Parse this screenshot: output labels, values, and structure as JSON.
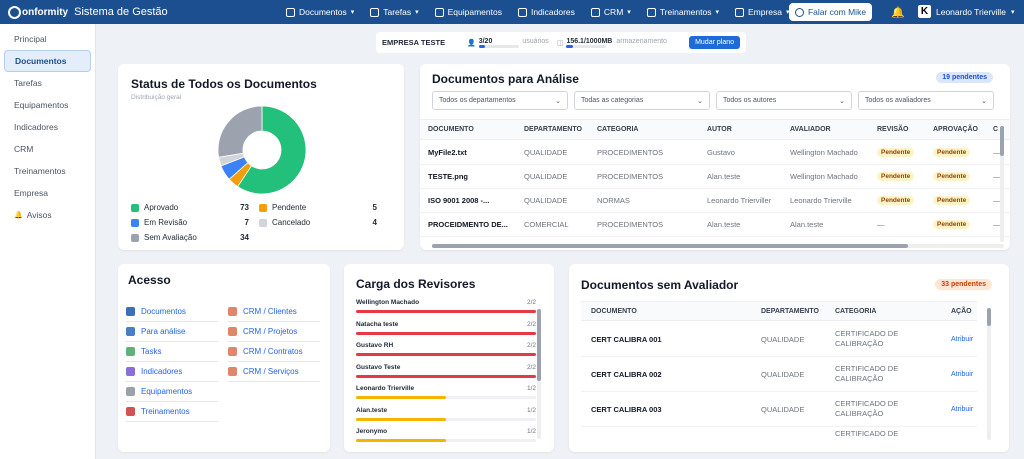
{
  "topbar": {
    "logo_text": "onformity",
    "app_title": "Sistema de Gestão",
    "nav": [
      {
        "label": "Documentos",
        "icon": "document-icon",
        "has_menu": true
      },
      {
        "label": "Tarefas",
        "icon": "tasks-icon",
        "has_menu": true
      },
      {
        "label": "Equipamentos",
        "icon": "wrench-icon",
        "has_menu": false
      },
      {
        "label": "Indicadores",
        "icon": "chart-icon",
        "has_menu": false
      },
      {
        "label": "CRM",
        "icon": "crm-icon",
        "has_menu": true
      },
      {
        "label": "Treinamentos",
        "icon": "people-icon",
        "has_menu": true
      },
      {
        "label": "Empresa",
        "icon": "building-icon",
        "has_menu": true
      }
    ],
    "talk_button": "Falar com Mike",
    "user_initial": "K",
    "user_name": "Leonardo Trierville"
  },
  "sidebar": {
    "items": [
      {
        "label": "Principal",
        "active": false
      },
      {
        "label": "Documentos",
        "active": true
      },
      {
        "label": "Tarefas",
        "active": false
      },
      {
        "label": "Equipamentos",
        "active": false
      },
      {
        "label": "Indicadores",
        "active": false
      },
      {
        "label": "CRM",
        "active": false
      },
      {
        "label": "Treinamentos",
        "active": false
      },
      {
        "label": "Empresa",
        "active": false
      },
      {
        "label": "Avisos",
        "active": false,
        "icon": "bell-icon"
      }
    ]
  },
  "plan": {
    "company": "EMPRESA TESTE",
    "users_value": "3/20",
    "users_label": "usuários",
    "users_fraction": 0.15,
    "storage_value": "156.1/1000MB",
    "storage_label": "armazenamento",
    "storage_fraction": 0.156,
    "change_button": "Mudar plano"
  },
  "status_card": {
    "title": "Status de Todos os Documentos",
    "subtitle": "Distribuição geral",
    "chart_data": {
      "type": "pie",
      "donut": true,
      "categories": [
        "Aprovado",
        "Pendente",
        "Em Revisão",
        "Cancelado",
        "Sem Avaliação"
      ],
      "values": [
        73,
        5,
        7,
        4,
        34
      ],
      "colors": [
        "#22c07a",
        "#f59e0b",
        "#3b82f6",
        "#d1d5db",
        "#9ca3af"
      ]
    },
    "legend": [
      [
        {
          "label": "Aprovado",
          "value": "73",
          "color": "#22c07a"
        },
        {
          "label": "Pendente",
          "value": "5",
          "color": "#f59e0b"
        }
      ],
      [
        {
          "label": "Em Revisão",
          "value": "7",
          "color": "#3b82f6"
        },
        {
          "label": "Cancelado",
          "value": "4",
          "color": "#d1d5db"
        }
      ],
      [
        {
          "label": "Sem Avaliação",
          "value": "34",
          "color": "#9ca3af"
        }
      ]
    ]
  },
  "analysis": {
    "title": "Documentos para Análise",
    "badge": "19 pendentes",
    "filters": [
      "Todos os departamentos",
      "Todas as categorias",
      "Todos os autores",
      "Todos os avaliadores"
    ],
    "columns": [
      "DOCUMENTO",
      "DEPARTAMENTO",
      "CATEGORIA",
      "AUTOR",
      "AVALIADOR",
      "REVISÃO",
      "APROVAÇÃO",
      "C"
    ],
    "rows": [
      [
        "MyFile2.txt",
        "QUALIDADE",
        "PROCEDIMENTOS",
        "Gustavo",
        "Wellington Machado",
        "Pendente",
        "Pendente",
        "—"
      ],
      [
        "TESTE.png",
        "QUALIDADE",
        "PROCEDIMENTOS",
        "Alan.teste",
        "Wellington Machado",
        "Pendente",
        "Pendente",
        "—"
      ],
      [
        "ISO 9001 2008 -...",
        "QUALIDADE",
        "NORMAS",
        "Leonardo Trierviller",
        "Leonardo Trierville",
        "Pendente",
        "Pendente",
        "—"
      ],
      [
        "PROCEIDMENTO DE...",
        "COMERCIAL",
        "PROCEDIMENTOS",
        "Alan.teste",
        "Alan.teste",
        "—",
        "Pendente",
        "—"
      ]
    ]
  },
  "access": {
    "title": "Acesso",
    "left": [
      {
        "label": "Documentos",
        "color": "#3b6fb6"
      },
      {
        "label": "Para análise",
        "color": "#4a7fc1"
      },
      {
        "label": "Tasks",
        "color": "#5fb37a"
      },
      {
        "label": "Indicadores",
        "color": "#8b6fd6"
      },
      {
        "label": "Equipamentos",
        "color": "#9aa1ab"
      },
      {
        "label": "Treinamentos",
        "color": "#d05454"
      }
    ],
    "right": [
      {
        "label": "CRM / Clientes",
        "color": "#e0876a"
      },
      {
        "label": "CRM / Projetos",
        "color": "#e0876a"
      },
      {
        "label": "CRM / Contratos",
        "color": "#e0876a"
      },
      {
        "label": "CRM / Serviços",
        "color": "#e0876a"
      }
    ]
  },
  "reviewers": {
    "title": "Carga dos Revisores",
    "rows": [
      {
        "name": "Wellington Machado",
        "count": "2/2",
        "fraction": 1.0,
        "color": "#e53946"
      },
      {
        "name": "Natacha teste",
        "count": "2/2",
        "fraction": 1.0,
        "color": "#e53946"
      },
      {
        "name": "Gustavo RH",
        "count": "2/2",
        "fraction": 1.0,
        "color": "#e53946"
      },
      {
        "name": "Gustavo Teste",
        "count": "2/2",
        "fraction": 1.0,
        "color": "#e53946"
      },
      {
        "name": "Leonardo Trierville",
        "count": "1/2",
        "fraction": 0.5,
        "color": "#f4b400"
      },
      {
        "name": "Alan.teste",
        "count": "1/2",
        "fraction": 0.5,
        "color": "#f4b400"
      },
      {
        "name": "Jeronymo",
        "count": "1/2",
        "fraction": 0.5,
        "color": "#f4b400"
      }
    ]
  },
  "no_evaluator": {
    "title": "Documentos sem Avaliador",
    "badge": "33 pendentes",
    "columns": [
      "DOCUMENTO",
      "DEPARTAMENTO",
      "CATEGORIA",
      "AÇÃO"
    ],
    "rows": [
      {
        "doc": "CERT CALIBRA 001",
        "dept": "QUALIDADE",
        "cat1": "CERTIFICADO DE",
        "cat2": "CALIBRAÇÃO",
        "action": "Atribuir"
      },
      {
        "doc": "CERT CALIBRA 002",
        "dept": "QUALIDADE",
        "cat1": "CERTIFICADO DE",
        "cat2": "CALIBRAÇÃO",
        "action": "Atribuir"
      },
      {
        "doc": "CERT CALIBRA 003",
        "dept": "QUALIDADE",
        "cat1": "CERTIFICADO DE",
        "cat2": "CALIBRAÇÃO",
        "action": "Atribuir"
      },
      {
        "doc": "",
        "dept": "",
        "cat1": "CERTIFICADO DE",
        "cat2": "",
        "action": ""
      }
    ]
  }
}
